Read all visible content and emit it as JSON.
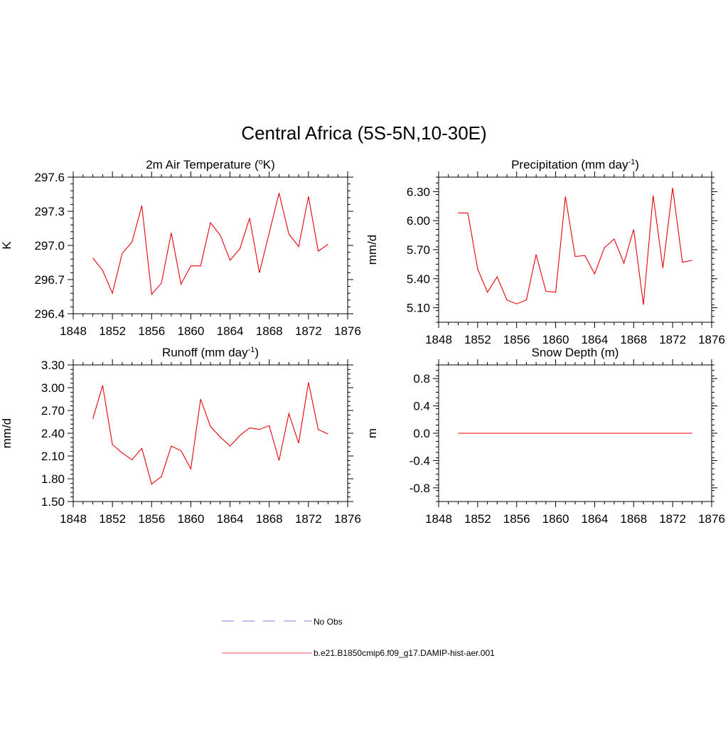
{
  "figure": {
    "title": "Central Africa (5S-5N,10-30E)",
    "line_color": "#e8000b",
    "obs_color": "#9999ee"
  },
  "legend": {
    "placement": "bottom-center",
    "entries": [
      {
        "label": "No Obs",
        "style": "dashed",
        "color": "#9999ee"
      },
      {
        "label": "b.e21.B1850cmip6.f09_g17.DAMIP-hist-aer.001",
        "style": "solid",
        "color": "#e8000b"
      }
    ]
  },
  "chart_data": [
    {
      "type": "line",
      "title": "2m Air Temperature (",
      "title_sup": "o",
      "title_after": "K)",
      "ylabel": "K",
      "xlim": [
        1848,
        1876
      ],
      "ylim": [
        296.4,
        297.6
      ],
      "xticks": [
        1848,
        1852,
        1856,
        1860,
        1864,
        1868,
        1872,
        1876
      ],
      "yticks": [
        "296.4",
        "296.7",
        "297.0",
        "297.3",
        "297.6"
      ],
      "grid": false,
      "x": [
        1850,
        1851,
        1852,
        1853,
        1854,
        1855,
        1856,
        1857,
        1858,
        1859,
        1860,
        1861,
        1862,
        1863,
        1864,
        1865,
        1866,
        1867,
        1868,
        1869,
        1870,
        1871,
        1872,
        1873,
        1874
      ],
      "values": [
        296.89,
        296.78,
        296.58,
        296.93,
        297.03,
        297.35,
        296.57,
        296.67,
        297.11,
        296.66,
        296.82,
        296.82,
        297.2,
        297.09,
        296.87,
        296.97,
        297.24,
        296.76,
        297.11,
        297.46,
        297.1,
        296.99,
        297.43,
        296.95,
        297.01
      ]
    },
    {
      "type": "line",
      "title": "Precipitation (mm day",
      "title_sup": "-1",
      "title_after": ")",
      "ylabel": "mm/d",
      "xlim": [
        1848,
        1876
      ],
      "ylim": [
        4.95,
        6.45
      ],
      "xticks": [
        1848,
        1852,
        1856,
        1860,
        1864,
        1868,
        1872,
        1876
      ],
      "yticks": [
        "5.10",
        "5.40",
        "5.70",
        "6.00",
        "6.30"
      ],
      "grid": false,
      "x": [
        1850,
        1851,
        1852,
        1853,
        1854,
        1855,
        1856,
        1857,
        1858,
        1859,
        1860,
        1861,
        1862,
        1863,
        1864,
        1865,
        1866,
        1867,
        1868,
        1869,
        1870,
        1871,
        1872,
        1873,
        1874
      ],
      "values": [
        6.08,
        6.08,
        5.5,
        5.26,
        5.42,
        5.18,
        5.14,
        5.18,
        5.65,
        5.27,
        5.26,
        6.25,
        5.63,
        5.64,
        5.45,
        5.72,
        5.81,
        5.56,
        5.91,
        5.13,
        6.26,
        5.51,
        6.34,
        5.57,
        5.59
      ]
    },
    {
      "type": "line",
      "title": "Runoff (mm day",
      "title_sup": "-1",
      "title_after": ")",
      "ylabel": "mm/d",
      "xlim": [
        1848,
        1876
      ],
      "ylim": [
        1.5,
        3.3
      ],
      "xticks": [
        1848,
        1852,
        1856,
        1860,
        1864,
        1868,
        1872,
        1876
      ],
      "yticks": [
        "1.50",
        "1.80",
        "2.10",
        "2.40",
        "2.70",
        "3.00",
        "3.30"
      ],
      "grid": false,
      "x": [
        1850,
        1851,
        1852,
        1853,
        1854,
        1855,
        1856,
        1857,
        1858,
        1859,
        1860,
        1861,
        1862,
        1863,
        1864,
        1865,
        1866,
        1867,
        1868,
        1869,
        1870,
        1871,
        1872,
        1873,
        1874
      ],
      "values": [
        2.59,
        3.03,
        2.25,
        2.14,
        2.05,
        2.2,
        1.73,
        1.83,
        2.23,
        2.17,
        1.93,
        2.85,
        2.49,
        2.35,
        2.23,
        2.37,
        2.47,
        2.45,
        2.5,
        2.04,
        2.66,
        2.27,
        3.07,
        2.45,
        2.39
      ]
    },
    {
      "type": "line",
      "title": "Snow Depth (m)",
      "title_sup": "",
      "title_after": "",
      "ylabel": "m",
      "xlim": [
        1848,
        1876
      ],
      "ylim": [
        -1.0,
        1.0
      ],
      "xticks": [
        1848,
        1852,
        1856,
        1860,
        1864,
        1868,
        1872,
        1876
      ],
      "yticks": [
        "-0.8",
        "-0.4",
        "0.0",
        "0.4",
        "0.8"
      ],
      "grid": false,
      "x": [
        1850,
        1851,
        1852,
        1853,
        1854,
        1855,
        1856,
        1857,
        1858,
        1859,
        1860,
        1861,
        1862,
        1863,
        1864,
        1865,
        1866,
        1867,
        1868,
        1869,
        1870,
        1871,
        1872,
        1873,
        1874
      ],
      "values": [
        0,
        0,
        0,
        0,
        0,
        0,
        0,
        0,
        0,
        0,
        0,
        0,
        0,
        0,
        0,
        0,
        0,
        0,
        0,
        0,
        0,
        0,
        0,
        0,
        0
      ]
    }
  ]
}
